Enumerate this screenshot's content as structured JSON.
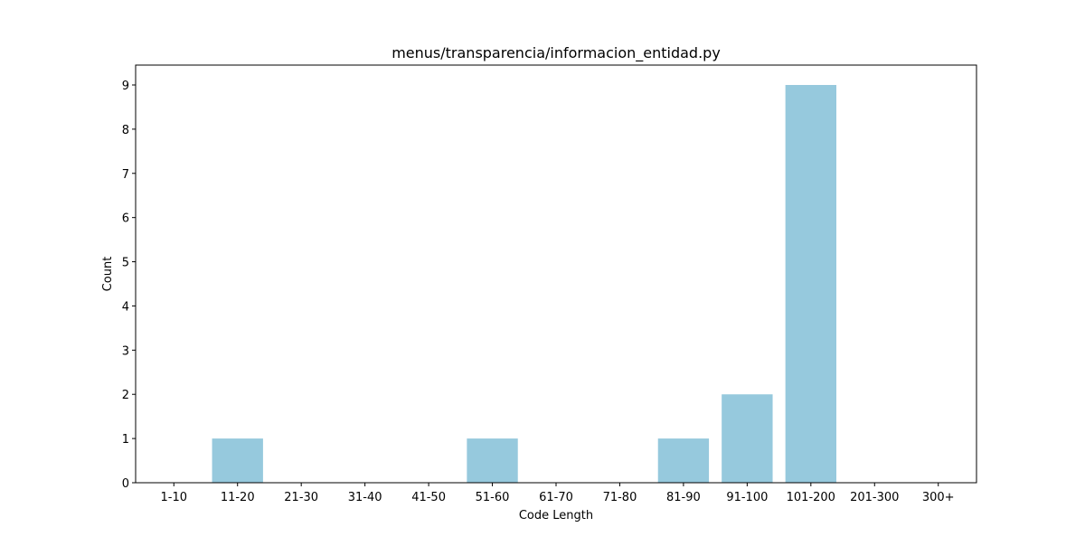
{
  "chart_data": {
    "type": "bar",
    "title": "menus/transparencia/informacion_entidad.py",
    "xlabel": "Code Length",
    "ylabel": "Count",
    "categories": [
      "1-10",
      "11-20",
      "21-30",
      "31-40",
      "41-50",
      "51-60",
      "61-70",
      "71-80",
      "81-90",
      "91-100",
      "101-200",
      "201-300",
      "300+"
    ],
    "values": [
      0,
      1,
      0,
      0,
      0,
      1,
      0,
      0,
      1,
      2,
      9,
      0,
      0
    ],
    "ylim": [
      0,
      9.45
    ],
    "yticks": [
      "0",
      "1",
      "2",
      "3",
      "4",
      "5",
      "6",
      "7",
      "8",
      "9"
    ],
    "bar_color": "#96c9dd",
    "grid": false,
    "legend": "none"
  }
}
